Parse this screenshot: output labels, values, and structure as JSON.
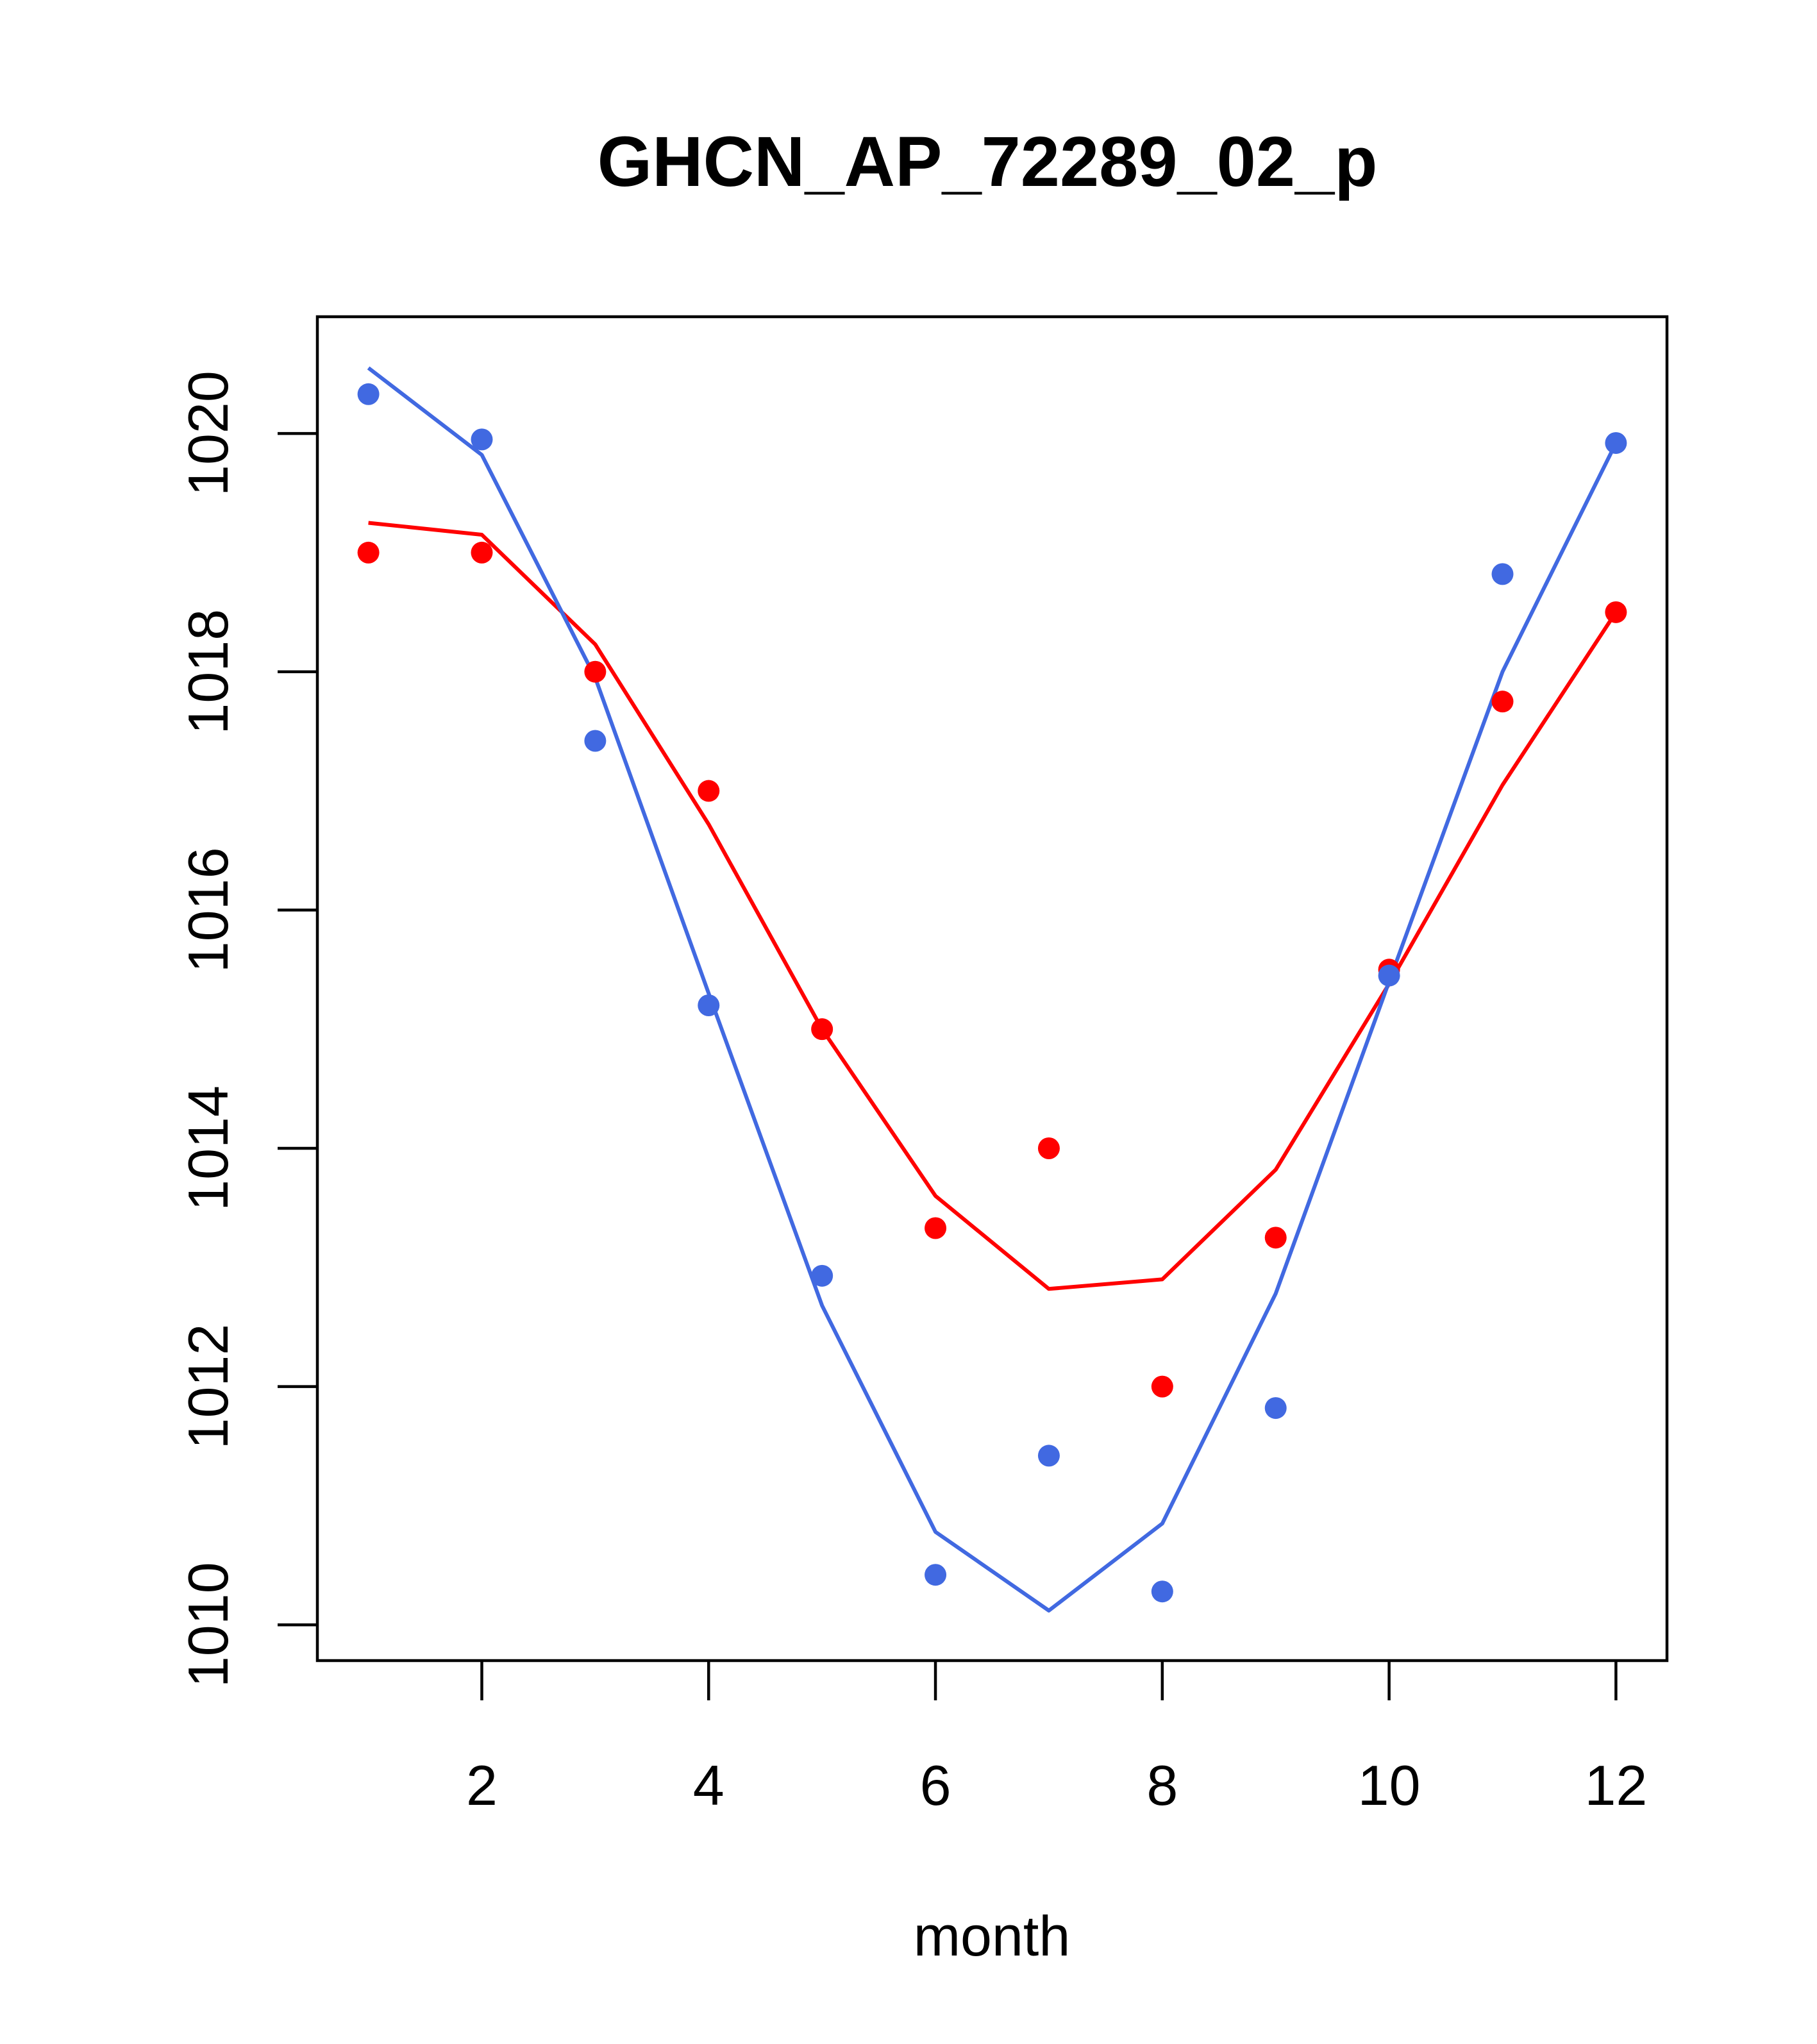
{
  "chart_data": {
    "type": "scatter",
    "title": "GHCN_AP_72289_02_p",
    "xlabel": "month",
    "ylabel": "",
    "xlim": [
      0.55,
      12.45
    ],
    "ylim": [
      1009.7,
      1020.98
    ],
    "x_ticks": [
      2,
      4,
      6,
      8,
      10,
      12
    ],
    "y_ticks": [
      1010,
      1012,
      1014,
      1016,
      1018,
      1020
    ],
    "grid": false,
    "legend": "none",
    "series": [
      {
        "color": "#ff0000",
        "points_x": [
          1,
          2,
          3,
          4,
          5,
          6,
          7,
          8,
          9,
          10,
          11,
          12
        ],
        "points_y": [
          1019.0,
          1019.0,
          1018.0,
          1017.0,
          1015.0,
          1013.33,
          1014.0,
          1012.0,
          1013.25,
          1015.5,
          1017.75,
          1018.5
        ],
        "line_x": [
          1,
          2,
          3,
          4,
          5,
          6,
          7,
          8,
          9,
          10,
          11,
          12
        ],
        "line_y": [
          1019.25,
          1019.15,
          1018.23,
          1016.72,
          1015.0,
          1013.6,
          1012.82,
          1012.9,
          1013.82,
          1015.38,
          1017.05,
          1018.5
        ]
      },
      {
        "color": "#4169e1",
        "points_x": [
          1,
          2,
          3,
          4,
          5,
          6,
          7,
          8,
          9,
          10,
          11,
          12
        ],
        "points_y": [
          1020.33,
          1019.95,
          1017.42,
          1015.2,
          1012.93,
          1010.42,
          1011.42,
          1010.28,
          1011.82,
          1015.45,
          1018.82,
          1019.92
        ],
        "line_x": [
          1,
          2,
          3,
          4,
          5,
          6,
          7,
          8,
          9,
          10,
          11,
          12
        ],
        "line_y": [
          1020.55,
          1019.82,
          1017.95,
          1015.3,
          1012.68,
          1010.78,
          1010.12,
          1010.85,
          1012.78,
          1015.4,
          1018.0,
          1019.92
        ]
      }
    ]
  }
}
